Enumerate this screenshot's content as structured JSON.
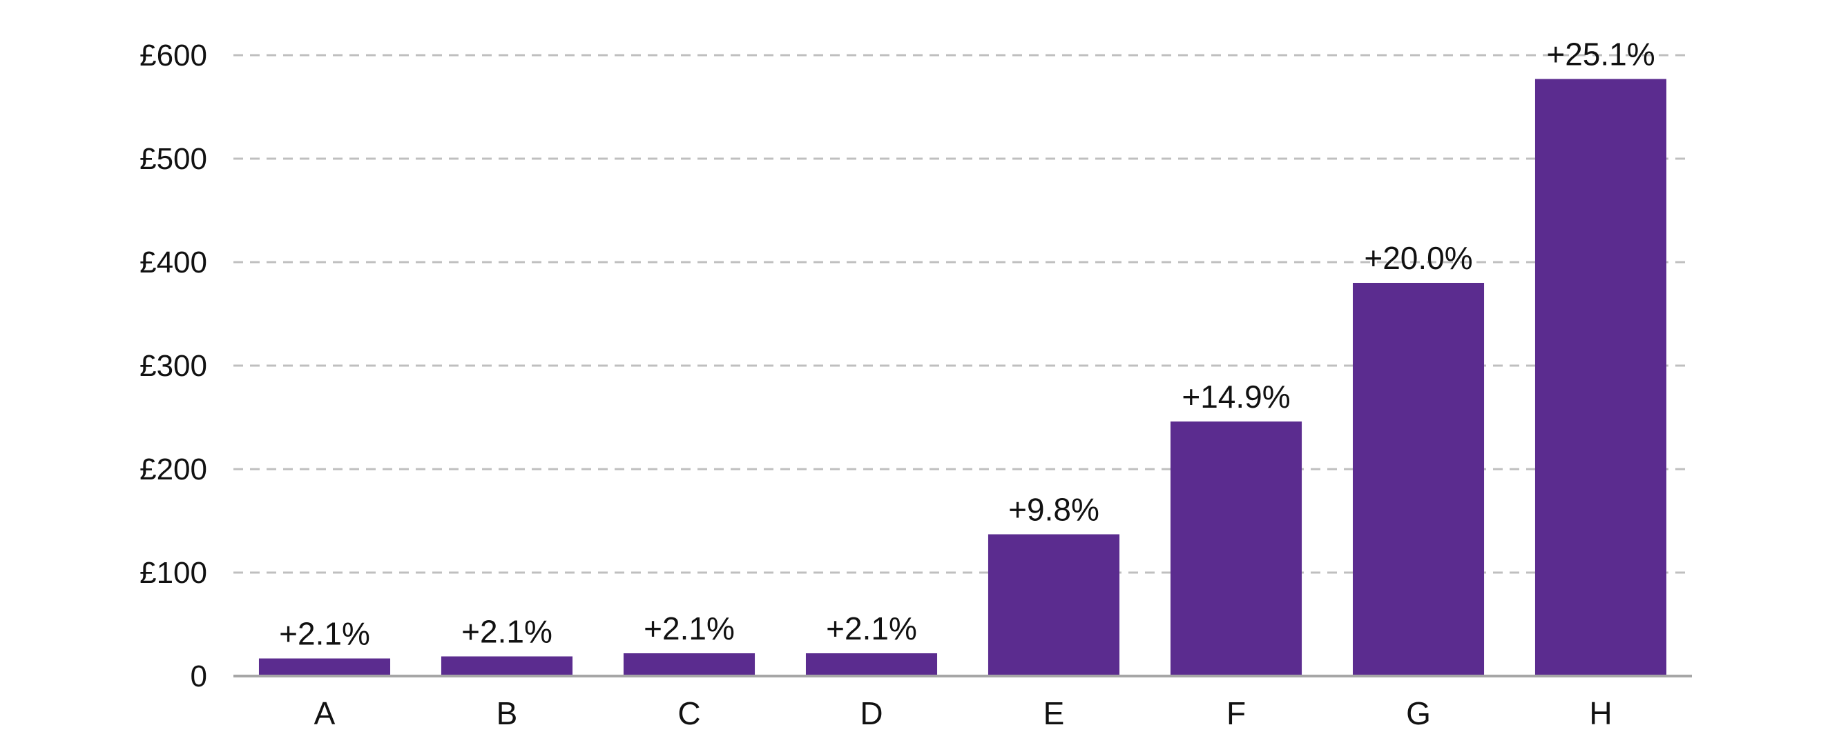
{
  "chart_data": {
    "type": "bar",
    "title": "",
    "xlabel": "",
    "ylabel": "",
    "categories": [
      "A",
      "B",
      "C",
      "D",
      "E",
      "F",
      "G",
      "H"
    ],
    "values": [
      17,
      19,
      22,
      22,
      137,
      246,
      380,
      577
    ],
    "data_labels": [
      "+2.1%",
      "+2.1%",
      "+2.1%",
      "+2.1%",
      "+9.8%",
      "+14.9%",
      "+20.0%",
      "+25.1%"
    ],
    "ylim": [
      0,
      600
    ],
    "yticks": [
      0,
      100,
      200,
      300,
      400,
      500,
      600
    ],
    "ytick_labels": [
      "0",
      "£100",
      "£200",
      "£300",
      "£400",
      "£500",
      "£600"
    ],
    "grid": "horizontal-dashed",
    "legend": "none",
    "colors": {
      "bar": "#5b2c8f",
      "grid": "#bfbfbf",
      "axis": "#a6a6a6",
      "text": "#111111"
    }
  }
}
